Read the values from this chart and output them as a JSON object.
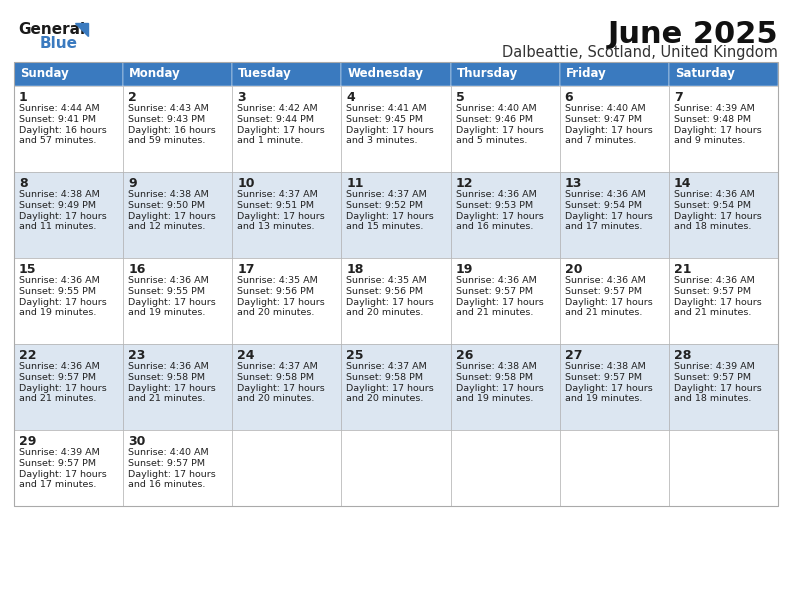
{
  "title": "June 2025",
  "subtitle": "Dalbeattie, Scotland, United Kingdom",
  "header_color": "#3a7abf",
  "header_text_color": "#ffffff",
  "alt_row_color": "#dce6f1",
  "white_row_color": "#ffffff",
  "border_color": "#aaaaaa",
  "text_color": "#222222",
  "days_of_week": [
    "Sunday",
    "Monday",
    "Tuesday",
    "Wednesday",
    "Thursday",
    "Friday",
    "Saturday"
  ],
  "weeks": [
    [
      {
        "day": 1,
        "sunrise": "4:44 AM",
        "sunset": "9:41 PM",
        "daylight": "16 hours and 57 minutes."
      },
      {
        "day": 2,
        "sunrise": "4:43 AM",
        "sunset": "9:43 PM",
        "daylight": "16 hours and 59 minutes."
      },
      {
        "day": 3,
        "sunrise": "4:42 AM",
        "sunset": "9:44 PM",
        "daylight": "17 hours and 1 minute."
      },
      {
        "day": 4,
        "sunrise": "4:41 AM",
        "sunset": "9:45 PM",
        "daylight": "17 hours and 3 minutes."
      },
      {
        "day": 5,
        "sunrise": "4:40 AM",
        "sunset": "9:46 PM",
        "daylight": "17 hours and 5 minutes."
      },
      {
        "day": 6,
        "sunrise": "4:40 AM",
        "sunset": "9:47 PM",
        "daylight": "17 hours and 7 minutes."
      },
      {
        "day": 7,
        "sunrise": "4:39 AM",
        "sunset": "9:48 PM",
        "daylight": "17 hours and 9 minutes."
      }
    ],
    [
      {
        "day": 8,
        "sunrise": "4:38 AM",
        "sunset": "9:49 PM",
        "daylight": "17 hours and 11 minutes."
      },
      {
        "day": 9,
        "sunrise": "4:38 AM",
        "sunset": "9:50 PM",
        "daylight": "17 hours and 12 minutes."
      },
      {
        "day": 10,
        "sunrise": "4:37 AM",
        "sunset": "9:51 PM",
        "daylight": "17 hours and 13 minutes."
      },
      {
        "day": 11,
        "sunrise": "4:37 AM",
        "sunset": "9:52 PM",
        "daylight": "17 hours and 15 minutes."
      },
      {
        "day": 12,
        "sunrise": "4:36 AM",
        "sunset": "9:53 PM",
        "daylight": "17 hours and 16 minutes."
      },
      {
        "day": 13,
        "sunrise": "4:36 AM",
        "sunset": "9:54 PM",
        "daylight": "17 hours and 17 minutes."
      },
      {
        "day": 14,
        "sunrise": "4:36 AM",
        "sunset": "9:54 PM",
        "daylight": "17 hours and 18 minutes."
      }
    ],
    [
      {
        "day": 15,
        "sunrise": "4:36 AM",
        "sunset": "9:55 PM",
        "daylight": "17 hours and 19 minutes."
      },
      {
        "day": 16,
        "sunrise": "4:36 AM",
        "sunset": "9:55 PM",
        "daylight": "17 hours and 19 minutes."
      },
      {
        "day": 17,
        "sunrise": "4:35 AM",
        "sunset": "9:56 PM",
        "daylight": "17 hours and 20 minutes."
      },
      {
        "day": 18,
        "sunrise": "4:35 AM",
        "sunset": "9:56 PM",
        "daylight": "17 hours and 20 minutes."
      },
      {
        "day": 19,
        "sunrise": "4:36 AM",
        "sunset": "9:57 PM",
        "daylight": "17 hours and 21 minutes."
      },
      {
        "day": 20,
        "sunrise": "4:36 AM",
        "sunset": "9:57 PM",
        "daylight": "17 hours and 21 minutes."
      },
      {
        "day": 21,
        "sunrise": "4:36 AM",
        "sunset": "9:57 PM",
        "daylight": "17 hours and 21 minutes."
      }
    ],
    [
      {
        "day": 22,
        "sunrise": "4:36 AM",
        "sunset": "9:57 PM",
        "daylight": "17 hours and 21 minutes."
      },
      {
        "day": 23,
        "sunrise": "4:36 AM",
        "sunset": "9:58 PM",
        "daylight": "17 hours and 21 minutes."
      },
      {
        "day": 24,
        "sunrise": "4:37 AM",
        "sunset": "9:58 PM",
        "daylight": "17 hours and 20 minutes."
      },
      {
        "day": 25,
        "sunrise": "4:37 AM",
        "sunset": "9:58 PM",
        "daylight": "17 hours and 20 minutes."
      },
      {
        "day": 26,
        "sunrise": "4:38 AM",
        "sunset": "9:58 PM",
        "daylight": "17 hours and 19 minutes."
      },
      {
        "day": 27,
        "sunrise": "4:38 AM",
        "sunset": "9:57 PM",
        "daylight": "17 hours and 19 minutes."
      },
      {
        "day": 28,
        "sunrise": "4:39 AM",
        "sunset": "9:57 PM",
        "daylight": "17 hours and 18 minutes."
      }
    ],
    [
      {
        "day": 29,
        "sunrise": "4:39 AM",
        "sunset": "9:57 PM",
        "daylight": "17 hours and 17 minutes."
      },
      {
        "day": 30,
        "sunrise": "4:40 AM",
        "sunset": "9:57 PM",
        "daylight": "17 hours and 16 minutes."
      },
      null,
      null,
      null,
      null,
      null
    ]
  ],
  "logo_color": "#3a7abf",
  "fig_width": 7.92,
  "fig_height": 6.12,
  "dpi": 100
}
